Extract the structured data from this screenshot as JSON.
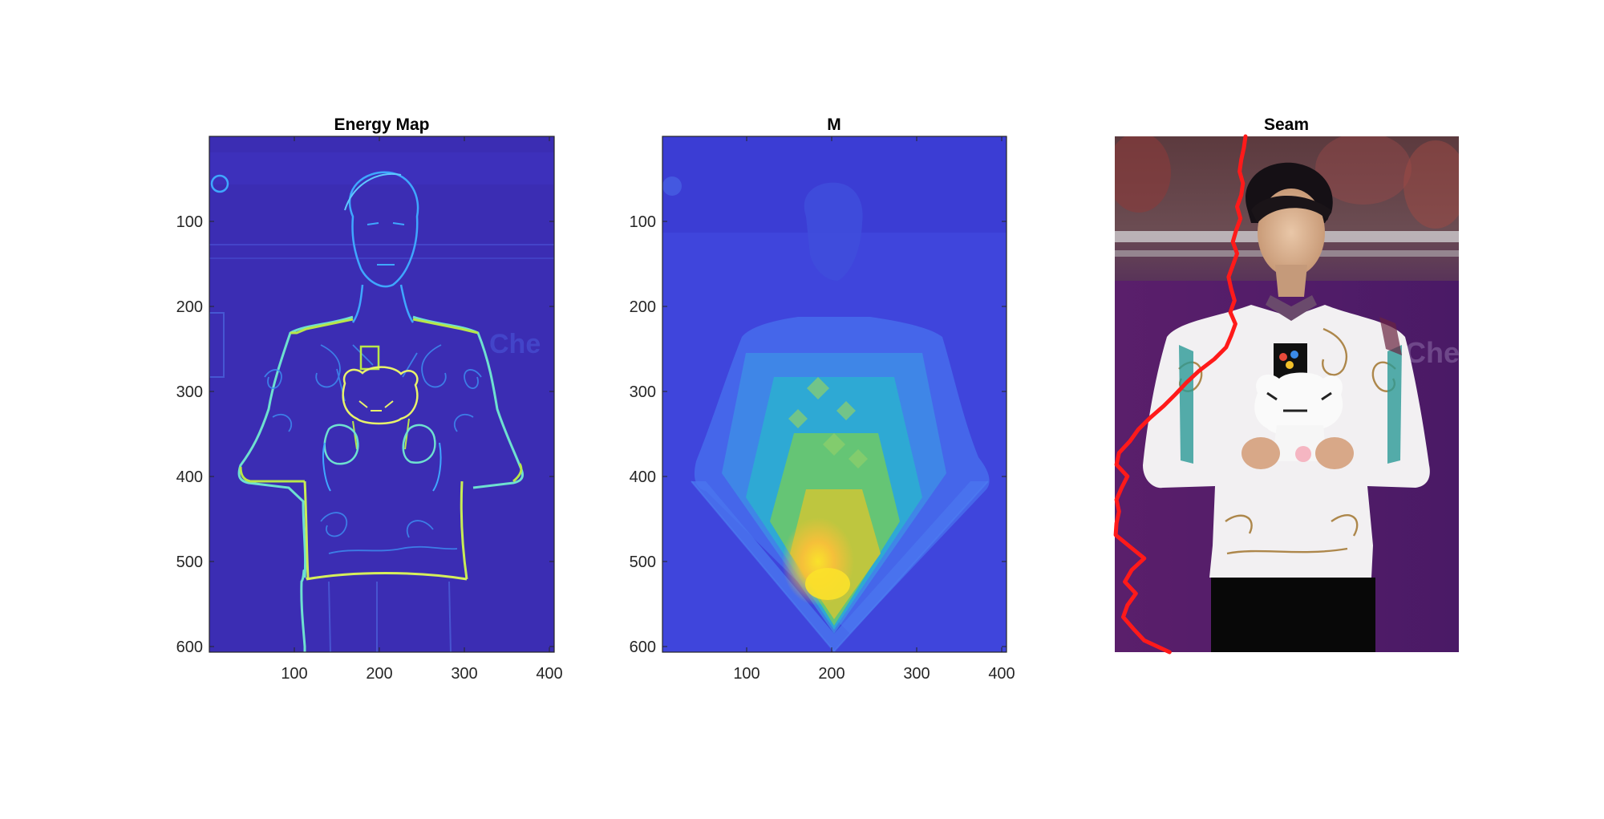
{
  "figure": {
    "panels": [
      {
        "id": "energy",
        "title": "Energy Map",
        "x_ticks": [
          "100",
          "200",
          "300",
          "400"
        ],
        "y_ticks": [
          "100",
          "200",
          "300",
          "400",
          "500",
          "600"
        ],
        "colormap": "parula",
        "background": "#3d2fb8",
        "edge_color": "#36b9ff",
        "highlight_color": "#b8e64a"
      },
      {
        "id": "cumulative",
        "title": "M",
        "x_ticks": [
          "100",
          "200",
          "300",
          "400"
        ],
        "y_ticks": [
          "100",
          "200",
          "300",
          "400",
          "500",
          "600"
        ],
        "colormap": "parula",
        "colors": [
          "#3d3fd8",
          "#3d63ee",
          "#2ab3c8",
          "#7dc95f",
          "#f7c838"
        ]
      },
      {
        "id": "seam",
        "title": "Seam",
        "seam_color": "#ff1a1a",
        "image_subject": "skater holding plush tiger mascot on podium",
        "seam_x": [
          155,
          153,
          150,
          148,
          152,
          150,
          145,
          149,
          144,
          140,
          145,
          140,
          135,
          138,
          142,
          137,
          143,
          138,
          132,
          118,
          100,
          85,
          72,
          58,
          42,
          28,
          18,
          5,
          2,
          15,
          8,
          2,
          5,
          2,
          1,
          18,
          35,
          20,
          12,
          25,
          15,
          10,
          22,
          35,
          65
        ],
        "seam_y_max": 612
      }
    ]
  }
}
